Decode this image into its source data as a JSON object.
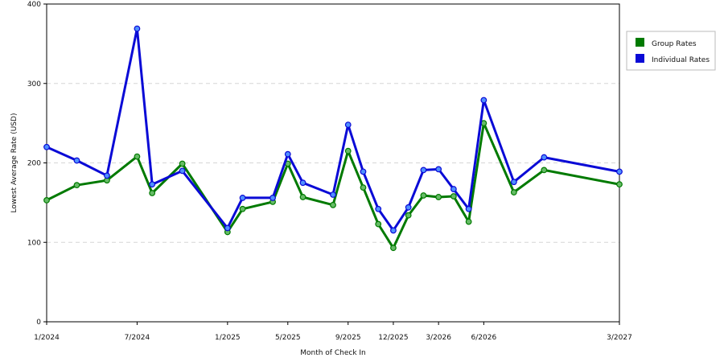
{
  "chart_data": {
    "type": "line",
    "xlabel": "Month of Check In",
    "ylabel": "Lowest Average Rate (USD)",
    "ylim": [
      0,
      400
    ],
    "yticks": [
      0,
      100,
      200,
      300,
      400
    ],
    "xticks": [
      "1/2024",
      "7/2024",
      "1/2025",
      "5/2025",
      "9/2025",
      "12/2025",
      "3/2026",
      "6/2026",
      "3/2027"
    ],
    "grid": "horizontal-dashed",
    "legend_position": "right",
    "series": [
      {
        "name": "Group Rates",
        "color": "#007a00",
        "marker_color": "#66bb66",
        "points": [
          [
            "2024-01",
            153
          ],
          [
            "2024-03",
            172
          ],
          [
            "2024-05",
            178
          ],
          [
            "2024-07",
            208
          ],
          [
            "2024-08",
            162
          ],
          [
            "2024-10",
            199
          ],
          [
            "2025-01",
            113
          ],
          [
            "2025-02",
            142
          ],
          [
            "2025-04",
            151
          ],
          [
            "2025-05",
            199
          ],
          [
            "2025-06",
            157
          ],
          [
            "2025-08",
            147
          ],
          [
            "2025-09",
            215
          ],
          [
            "2025-10",
            169
          ],
          [
            "2025-11",
            123
          ],
          [
            "2025-12",
            93
          ],
          [
            "2026-01",
            134
          ],
          [
            "2026-02",
            159
          ],
          [
            "2026-03",
            157
          ],
          [
            "2026-04",
            158
          ],
          [
            "2026-05",
            126
          ],
          [
            "2026-06",
            250
          ],
          [
            "2026-08",
            163
          ],
          [
            "2026-10",
            191
          ],
          [
            "2027-03",
            173
          ]
        ]
      },
      {
        "name": "Individual Rates",
        "color": "#0a0ad6",
        "marker_color": "#4f8fff",
        "points": [
          [
            "2024-01",
            220
          ],
          [
            "2024-03",
            203
          ],
          [
            "2024-05",
            184
          ],
          [
            "2024-07",
            369
          ],
          [
            "2024-08",
            173
          ],
          [
            "2024-10",
            190
          ],
          [
            "2025-01",
            118
          ],
          [
            "2025-02",
            156
          ],
          [
            "2025-04",
            156
          ],
          [
            "2025-05",
            211
          ],
          [
            "2025-06",
            175
          ],
          [
            "2025-08",
            160
          ],
          [
            "2025-09",
            248
          ],
          [
            "2025-10",
            189
          ],
          [
            "2025-11",
            142
          ],
          [
            "2025-12",
            115
          ],
          [
            "2026-01",
            144
          ],
          [
            "2026-02",
            191
          ],
          [
            "2026-03",
            192
          ],
          [
            "2026-04",
            167
          ],
          [
            "2026-05",
            142
          ],
          [
            "2026-06",
            279
          ],
          [
            "2026-08",
            176
          ],
          [
            "2026-10",
            207
          ],
          [
            "2027-03",
            189
          ]
        ]
      }
    ]
  }
}
